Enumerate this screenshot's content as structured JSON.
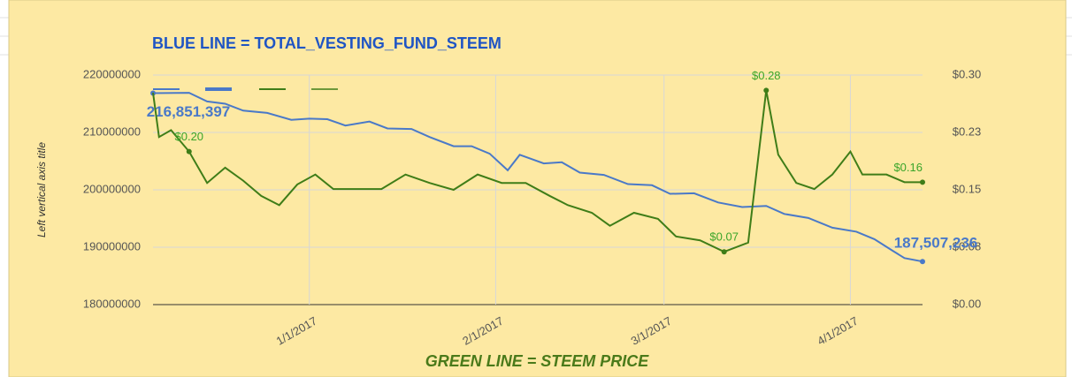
{
  "chart_data": {
    "type": "line",
    "title": "BLUE LINE = TOTAL_VESTING_FUND_STEEM",
    "x_label": "GREEN LINE = STEEM PRICE",
    "y_label": "Left vertical axis title",
    "xlim": [
      "12/6/2016",
      "4/13/2017"
    ],
    "xticks": [
      "1/1/2017",
      "2/1/2017",
      "3/1/2017",
      "4/1/2017"
    ],
    "ylim": [
      180000000,
      220000000
    ],
    "yticks": [
      180000000,
      190000000,
      200000000,
      210000000,
      220000000
    ],
    "y2lim": [
      0,
      0.3
    ],
    "y2ticks": [
      {
        "value": 0,
        "label": "$0.00"
      },
      {
        "value": 0.075,
        "label": "$0.08"
      },
      {
        "value": 0.15,
        "label": "$0.15"
      },
      {
        "value": 0.225,
        "label": "$0.23"
      },
      {
        "value": 0.3,
        "label": "$0.30"
      }
    ],
    "grid": true,
    "series": [
      {
        "color": "#4a79c8",
        "x": [
          "12/6/2016",
          "12/12/2016",
          "12/15/2016",
          "12/18/2016",
          "12/21/2016",
          "12/25/2016",
          "12/29/2016",
          "1/1/2017",
          "1/4/2017",
          "1/7/2017",
          "1/11/2017",
          "1/14/2017",
          "1/18/2017",
          "1/21/2017",
          "1/25/2017",
          "1/28/2017",
          "1/31/2017",
          "2/3/2017",
          "2/5/2017",
          "2/9/2017",
          "2/12/2017",
          "2/15/2017",
          "2/19/2017",
          "2/23/2017",
          "2/27/2017",
          "3/2/2017",
          "3/6/2017",
          "3/10/2017",
          "3/14/2017",
          "3/18/2017",
          "3/21/2017",
          "3/25/2017",
          "3/29/2017",
          "4/2/2017",
          "4/5/2017",
          "4/8/2017",
          "4/10/2017",
          "4/13/2017"
        ],
        "values": [
          216851397,
          216900000,
          215400000,
          215000000,
          213800000,
          213400000,
          212200000,
          212400000,
          212300000,
          211200000,
          211900000,
          210700000,
          210600000,
          209200000,
          207600000,
          207600000,
          206300000,
          203400000,
          206100000,
          204600000,
          204800000,
          203000000,
          202600000,
          201000000,
          200800000,
          199300000,
          199400000,
          197800000,
          197000000,
          197200000,
          195800000,
          195100000,
          193400000,
          192700000,
          191400000,
          189400000,
          188100000,
          187507236
        ],
        "value_labels": [
          "216,851,397",
          null,
          null,
          null,
          null,
          null,
          null,
          null,
          null,
          null,
          null,
          null,
          null,
          null,
          null,
          null,
          null,
          null,
          null,
          null,
          null,
          null,
          null,
          null,
          null,
          null,
          null,
          null,
          null,
          null,
          null,
          null,
          null,
          null,
          null,
          null,
          null,
          "187,507,236"
        ]
      },
      {
        "color": "#3f7d18",
        "axis": "y2",
        "x": [
          "12/6/2016",
          "12/7/2016",
          "12/9/2016",
          "12/12/2016",
          "12/15/2016",
          "12/18/2016",
          "12/21/2016",
          "12/24/2016",
          "12/27/2016",
          "12/30/2016",
          "1/2/2017",
          "1/5/2017",
          "1/9/2017",
          "1/13/2017",
          "1/17/2017",
          "1/21/2017",
          "1/25/2017",
          "1/29/2017",
          "2/2/2017",
          "2/6/2017",
          "2/10/2017",
          "2/13/2017",
          "2/17/2017",
          "2/20/2017",
          "2/24/2017",
          "2/28/2017",
          "3/3/2017",
          "3/7/2017",
          "3/11/2017",
          "3/15/2017",
          "3/18/2017",
          "3/20/2017",
          "3/23/2017",
          "3/26/2017",
          "3/29/2017",
          "4/1/2017",
          "4/3/2017",
          "4/7/2017",
          "4/10/2017",
          "4/13/2017"
        ],
        "values": [
          0.277,
          0.219,
          0.228,
          0.2,
          0.159,
          0.179,
          0.162,
          0.142,
          0.13,
          0.157,
          0.17,
          0.151,
          0.151,
          0.151,
          0.17,
          0.159,
          0.15,
          0.17,
          0.159,
          0.159,
          0.142,
          0.13,
          0.12,
          0.103,
          0.12,
          0.112,
          0.089,
          0.084,
          0.069,
          0.081,
          0.28,
          0.196,
          0.159,
          0.151,
          0.17,
          0.2,
          0.17,
          0.17,
          0.16,
          0.16
        ],
        "value_labels": [
          null,
          null,
          null,
          "$0.20",
          null,
          null,
          null,
          null,
          null,
          null,
          null,
          null,
          null,
          null,
          null,
          null,
          null,
          null,
          null,
          null,
          null,
          null,
          null,
          null,
          null,
          null,
          null,
          null,
          "$0.07",
          null,
          "$0.28",
          null,
          null,
          null,
          null,
          null,
          null,
          null,
          null,
          "$0.16"
        ]
      }
    ]
  }
}
